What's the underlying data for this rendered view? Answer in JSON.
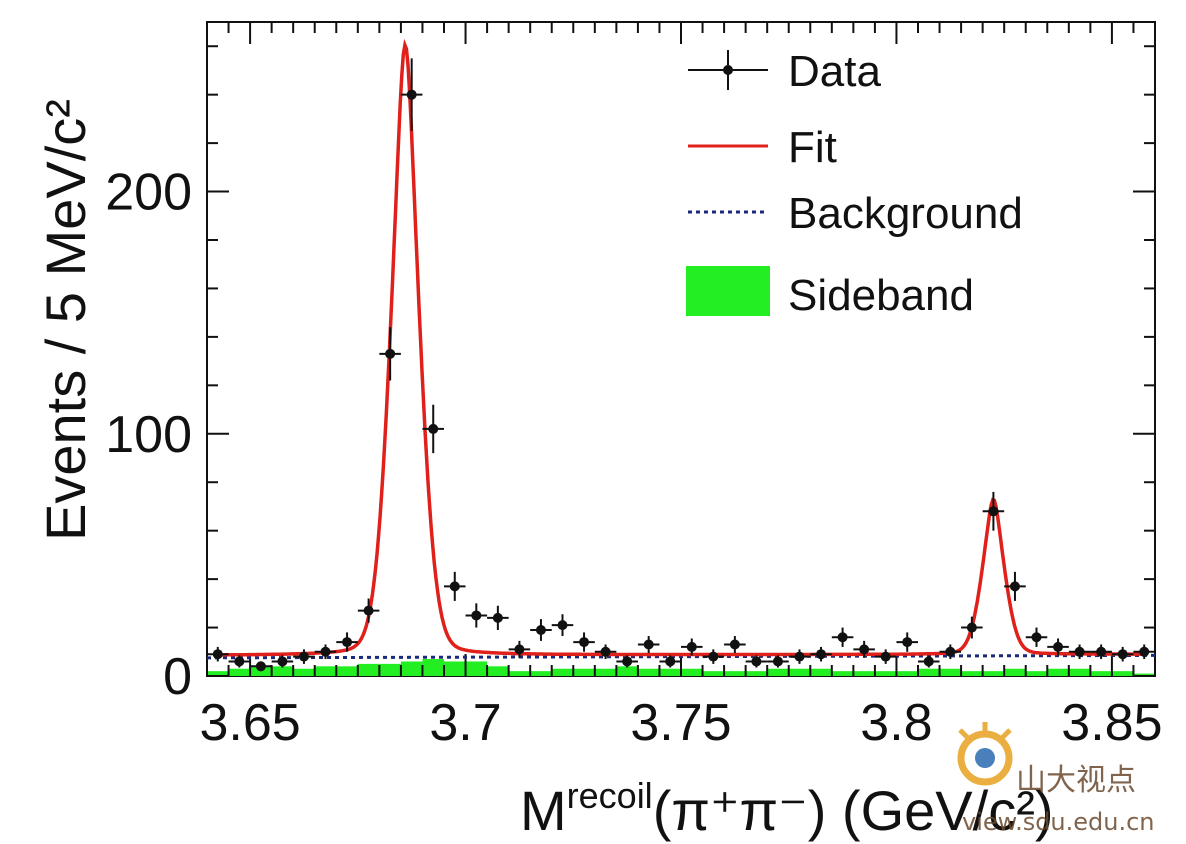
{
  "chart_data": {
    "type": "line",
    "title": "",
    "xlabel_main": "M",
    "xlabel_sup": "recoil",
    "xlabel_tail": "(π⁺π⁻) (GeV/c²)",
    "ylabel": "Events / 5 MeV/c²",
    "xlim": [
      3.64,
      3.86
    ],
    "ylim": [
      0,
      270
    ],
    "xticks": [
      3.65,
      3.7,
      3.75,
      3.8,
      3.85
    ],
    "xtick_labels": [
      "3.65",
      "3.7",
      "3.75",
      "3.8",
      "3.85"
    ],
    "yticks": [
      0,
      100,
      200
    ],
    "ytick_labels": [
      "0",
      "100",
      "200"
    ],
    "legend": {
      "position": "top-right",
      "entries": [
        {
          "label": "Data",
          "style": "points-with-errors"
        },
        {
          "label": "Fit",
          "style": "red-line"
        },
        {
          "label": "Background",
          "style": "dotted-line"
        },
        {
          "label": "Sideband",
          "style": "green-fill"
        }
      ]
    },
    "series": [
      {
        "name": "Data",
        "x": [
          3.6425,
          3.6475,
          3.6525,
          3.6575,
          3.6625,
          3.6675,
          3.6725,
          3.6775,
          3.6825,
          3.6875,
          3.6925,
          3.6975,
          3.7025,
          3.7075,
          3.7125,
          3.7175,
          3.7225,
          3.7275,
          3.7325,
          3.7375,
          3.7425,
          3.7475,
          3.7525,
          3.7575,
          3.7625,
          3.7675,
          3.7725,
          3.7775,
          3.7825,
          3.7875,
          3.7925,
          3.7975,
          3.8025,
          3.8075,
          3.8125,
          3.8175,
          3.8225,
          3.8275,
          3.8325,
          3.8375,
          3.8425,
          3.8475,
          3.8525,
          3.8575
        ],
        "y": [
          9,
          6,
          4,
          6,
          8,
          10,
          14,
          27,
          133,
          240,
          102,
          37,
          25,
          24,
          11,
          19,
          21,
          14,
          10,
          6,
          13,
          6,
          12,
          8,
          13,
          6,
          6,
          8,
          9,
          16,
          11,
          8,
          14,
          6,
          10,
          20,
          68,
          37,
          16,
          12,
          10,
          10,
          9,
          10
        ],
        "yerr": [
          3,
          2.5,
          2,
          2.5,
          3,
          3,
          4,
          5,
          11,
          15,
          10,
          6,
          5,
          5,
          3.5,
          4.5,
          4.5,
          4,
          3,
          2.5,
          3.5,
          2.5,
          3.5,
          3,
          3.5,
          2.5,
          2.5,
          3,
          3,
          4,
          3.5,
          3,
          4,
          2.5,
          3,
          4.5,
          8,
          6,
          4,
          3.5,
          3,
          3,
          3,
          3
        ]
      },
      {
        "name": "Fit",
        "function": "background + breit-wigner-like peaks",
        "peaks": [
          {
            "center": 3.686,
            "height": 252,
            "width": 0.0036
          },
          {
            "center": 3.8225,
            "height": 64,
            "width": 0.0028
          }
        ],
        "background_level": [
          8.5,
          9.0
        ]
      },
      {
        "name": "Background",
        "x": [
          3.64,
          3.86
        ],
        "y": [
          7.5,
          8.5
        ]
      },
      {
        "name": "Sideband",
        "bin_width": 0.005,
        "x": [
          3.6425,
          3.6475,
          3.6525,
          3.6575,
          3.6625,
          3.6675,
          3.6725,
          3.6775,
          3.6825,
          3.6875,
          3.6925,
          3.6975,
          3.7025,
          3.7075,
          3.7125,
          3.7175,
          3.7225,
          3.7275,
          3.7325,
          3.7375,
          3.7425,
          3.7475,
          3.7525,
          3.7575,
          3.7625,
          3.7675,
          3.7725,
          3.7775,
          3.7825,
          3.7875,
          3.7925,
          3.7975,
          3.8025,
          3.8075,
          3.8125,
          3.8175,
          3.8225,
          3.8275,
          3.8325,
          3.8375,
          3.8425,
          3.8475,
          3.8525,
          3.8575
        ],
        "y": [
          2,
          3,
          4,
          4,
          3,
          4,
          4,
          5,
          5,
          6,
          7,
          6,
          6,
          4,
          2,
          2,
          3,
          3,
          3,
          4,
          3,
          3,
          3,
          2,
          2,
          2,
          3,
          3,
          3,
          2,
          2,
          2,
          2,
          3,
          3,
          2,
          2,
          3,
          2,
          3,
          3,
          2,
          2,
          1
        ]
      }
    ],
    "colors": {
      "fit": "#e0201a",
      "data": "#111111",
      "background": "#1a2a7a",
      "sideband": "#22ee22",
      "purple_overlay": "#7a2aa0"
    }
  },
  "watermark": {
    "text": "山大视点",
    "url_text": "view.sdu.edu.cn"
  }
}
